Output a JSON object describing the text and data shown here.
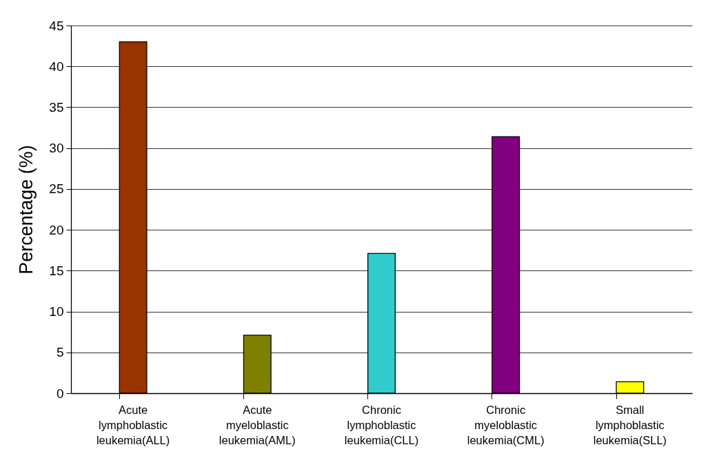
{
  "chart_data": {
    "type": "bar",
    "ylabel": "Percentage (%)",
    "categories": [
      "Acute lymphoblastic leukemia(ALL)",
      "Acute myeloblastic leukemia(AML)",
      "Chronic lymphoblastic leukemia(CLL)",
      "Chronic myeloblastic leukemia(CML)",
      "Small lymphoblastic leukemia(SLL)"
    ],
    "values": [
      43,
      7.1,
      17.1,
      31.4,
      1.4
    ],
    "colors": [
      "#993300",
      "#808000",
      "#33cccc",
      "#800080",
      "#ffff00"
    ],
    "ylim": [
      0,
      45
    ],
    "yticks": [
      0,
      5,
      10,
      15,
      20,
      25,
      30,
      35,
      40,
      45
    ],
    "grid": "y"
  }
}
